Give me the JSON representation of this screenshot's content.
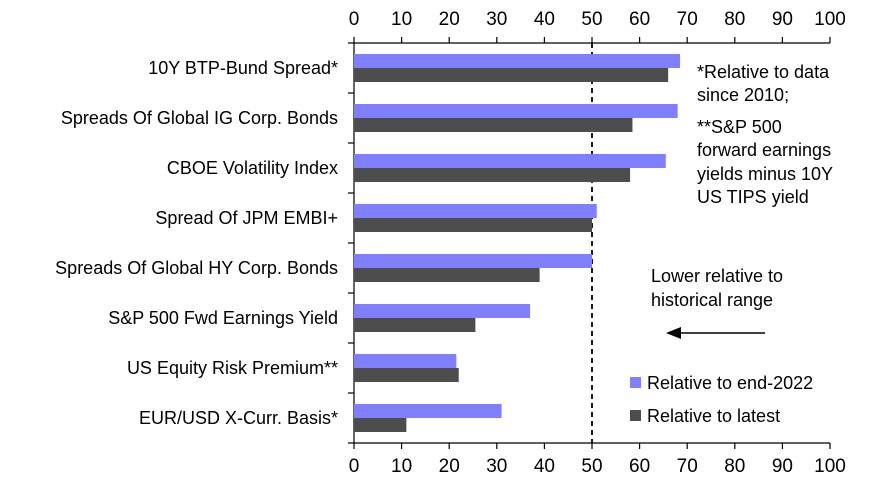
{
  "chart_data": {
    "type": "bar",
    "orientation": "horizontal",
    "categories": [
      "10Y BTP-Bund Spread*",
      "Spreads Of Global IG Corp. Bonds",
      "CBOE Volatility Index",
      "Spread Of JPM EMBI+",
      "Spreads Of Global HY Corp. Bonds",
      "S&P 500 Fwd Earnings Yield",
      "US Equity Risk Premium**",
      "EUR/USD X-Curr. Basis*"
    ],
    "series": [
      {
        "name": "Relative to end-2022",
        "color": "#8080ff",
        "values": [
          68.5,
          68,
          65.5,
          51,
          50,
          37,
          21.5,
          31
        ]
      },
      {
        "name": "Relative to latest",
        "color": "#4d4d4d",
        "values": [
          66,
          58.5,
          58,
          50,
          39,
          25.5,
          22,
          11
        ]
      }
    ],
    "xlim": [
      0,
      100
    ],
    "xticks": [
      "0",
      "10",
      "20",
      "30",
      "40",
      "50",
      "60",
      "70",
      "80",
      "90",
      "100"
    ],
    "reference_line": 50,
    "annotations": {
      "note_lines": [
        "*Relative to data",
        "since 2010;",
        "**S&P 500",
        "forward earnings",
        "yields minus 10Y",
        "US TIPS yield"
      ],
      "arrow_text_lines": [
        "Lower relative to",
        "historical range"
      ]
    },
    "legend_position": "bottom-right"
  }
}
